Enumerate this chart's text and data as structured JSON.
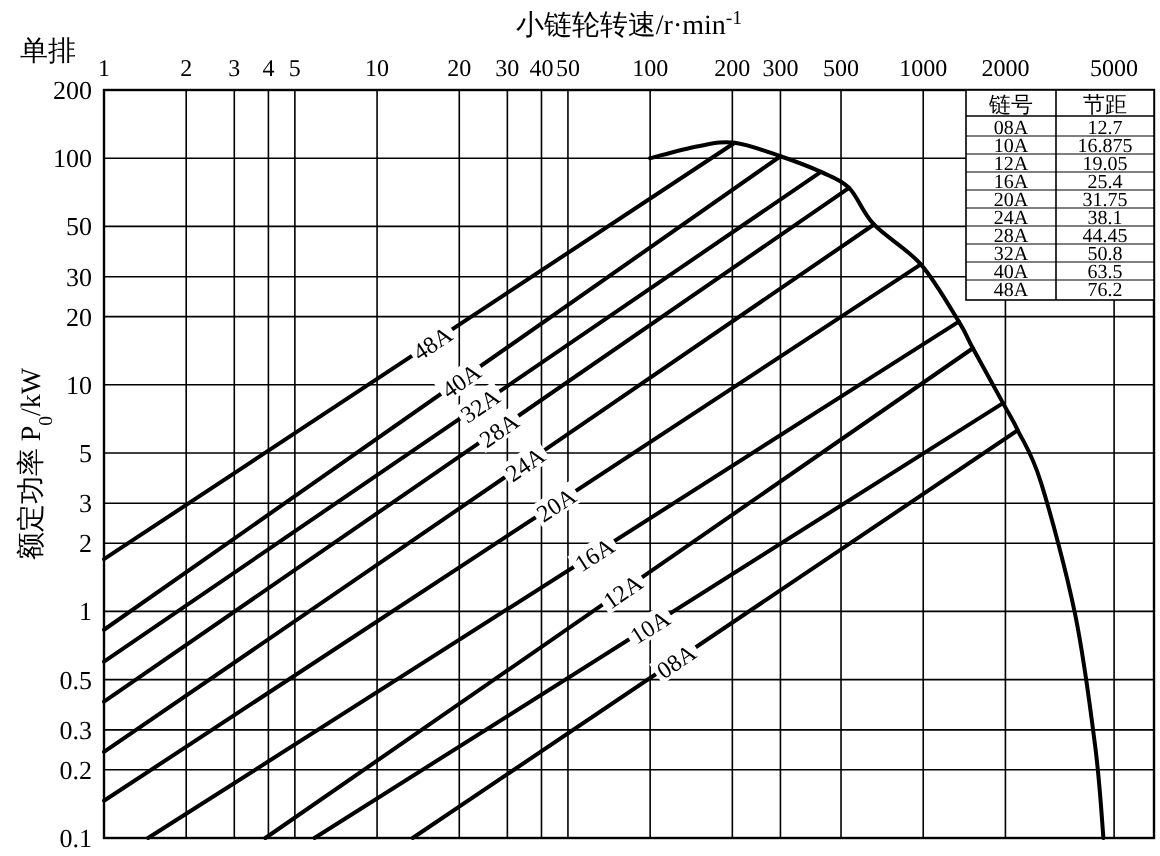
{
  "chart_data": [
    {
      "type": "line",
      "xlabel": "小链轮转速/r·min$^{-1}$",
      "ylabel": "额定功率 P$_{0}$/kW",
      "annotations": [
        "单排"
      ],
      "log": "xy",
      "grid": true,
      "marker": "none",
      "line_style": "solid",
      "xlim": [
        1,
        7000
      ],
      "xticks": [
        1,
        2,
        3,
        4,
        5,
        10,
        20,
        30,
        40,
        50,
        100,
        200,
        300,
        500,
        1000,
        2000,
        5000
      ],
      "ylim": [
        0.1,
        200
      ],
      "yticks": [
        0.1,
        0.2,
        0.3,
        0.5,
        1,
        2,
        3,
        5,
        10,
        20,
        30,
        50,
        100,
        200
      ],
      "series": [
        {
          "name": "48A",
          "color": "#000000",
          "x": [
            1,
            204
          ],
          "values": [
            1.7,
            117
          ]
        },
        {
          "name": "40A",
          "color": "#000000",
          "x": [
            1,
            300
          ],
          "values": [
            0.83,
            102
          ]
        },
        {
          "name": "32A",
          "color": "#000000",
          "x": [
            1,
            422
          ],
          "values": [
            0.6,
            87
          ]
        },
        {
          "name": "28A",
          "color": "#000000",
          "x": [
            1,
            535
          ],
          "values": [
            0.4,
            74
          ]
        },
        {
          "name": "24A",
          "color": "#000000",
          "x": [
            1,
            660
          ],
          "values": [
            0.24,
            51
          ]
        },
        {
          "name": "20A",
          "color": "#000000",
          "x": [
            1,
            980
          ],
          "values": [
            0.146,
            34
          ]
        },
        {
          "name": "16A",
          "color": "#000000",
          "x": [
            1.45,
            1350
          ],
          "values": [
            0.1,
            19
          ]
        },
        {
          "name": "12A",
          "color": "#000000",
          "x": [
            3.9,
            1520
          ],
          "values": [
            0.1,
            14.5
          ]
        },
        {
          "name": "10A",
          "color": "#000000",
          "x": [
            5.9,
            1960
          ],
          "values": [
            0.1,
            8.3
          ]
        },
        {
          "name": "08A",
          "color": "#000000",
          "x": [
            13.5,
            2220
          ],
          "values": [
            0.1,
            6.3
          ]
        },
        {
          "color": "#000000",
          "x": [
            100,
            150,
            204,
            300,
            422,
            535,
            660,
            980,
            1350,
            1520,
            1960,
            2220,
            2700,
            3600,
            4270,
            4570
          ],
          "values": [
            100,
            113,
            117,
            102,
            87,
            74,
            51,
            34,
            19,
            14.5,
            8.3,
            6.3,
            3.7,
            0.97,
            0.25,
            0.1
          ]
        }
      ]
    },
    {
      "type": "other",
      "xlabel": "链号",
      "ylabel": "节距",
      "data_labels": true,
      "categories": [
        "08A",
        "10A",
        "12A",
        "16A",
        "20A",
        "24A",
        "28A",
        "32A",
        "40A",
        "48A"
      ],
      "values": [
        12.7,
        16.875,
        19.05,
        25.4,
        31.75,
        38.1,
        44.45,
        50.8,
        63.5,
        76.2
      ]
    }
  ]
}
